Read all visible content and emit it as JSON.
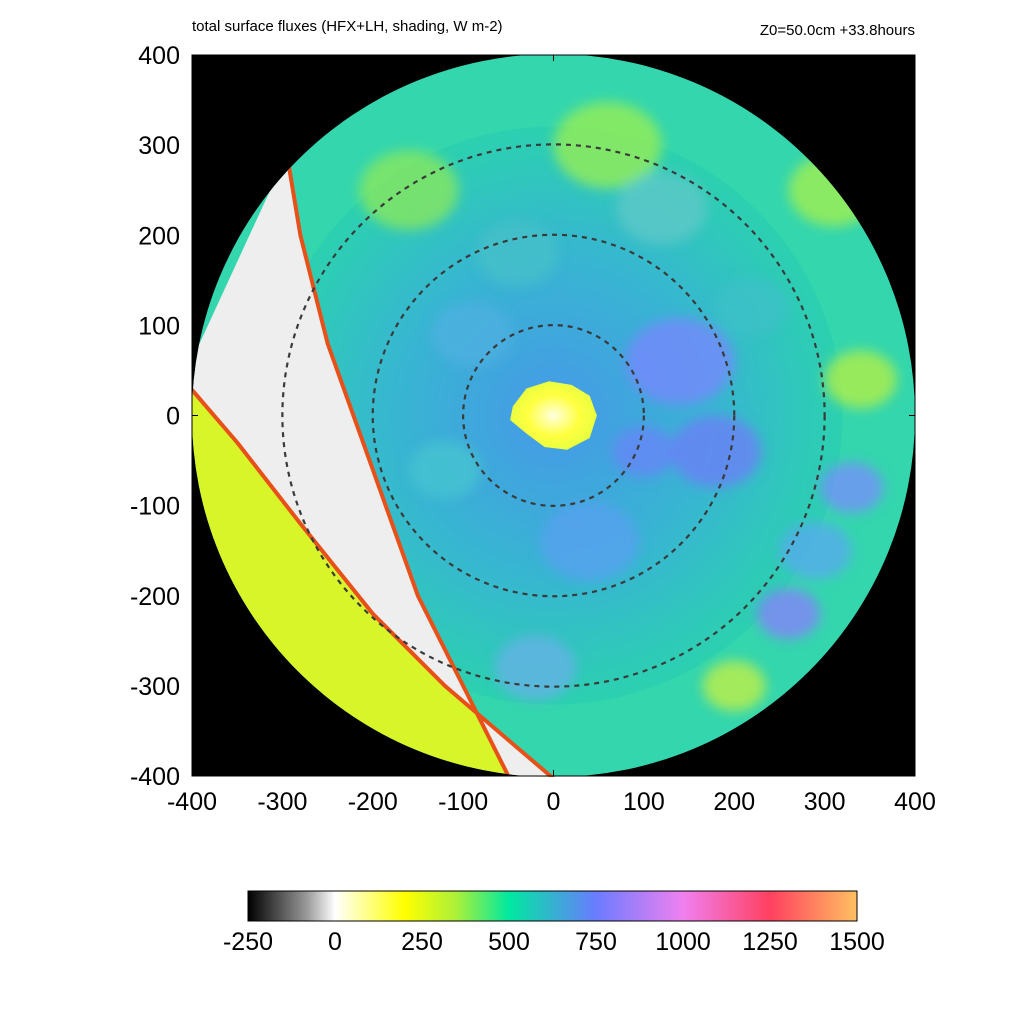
{
  "chart_data": {
    "type": "heatmap",
    "title": "total surface fluxes (HFX+LH, shading, W m-2)",
    "subtitle": "Z0=50.0cm  +33.8hours",
    "xlabel": "",
    "ylabel": "",
    "xlim": [
      -400,
      400
    ],
    "ylim": [
      -400,
      400
    ],
    "x_ticks": [
      "-400",
      "-300",
      "-200",
      "-100",
      "0",
      "100",
      "200",
      "300",
      "400"
    ],
    "y_ticks": [
      "400",
      "300",
      "200",
      "100",
      "0",
      "-100",
      "-200",
      "-300",
      "-400"
    ],
    "domain_radius": 400,
    "range_rings": [
      100,
      200,
      300
    ],
    "eye_flux_approx": 250,
    "colorbar": {
      "ticks": [
        "-250",
        "0",
        "250",
        "500",
        "750",
        "1000",
        "1250",
        "1500"
      ],
      "min": -250,
      "max": 1500,
      "stops": [
        {
          "value": -250,
          "color": "#000000"
        },
        {
          "value": -80,
          "color": "#9a9a9a"
        },
        {
          "value": 0,
          "color": "#ffffff"
        },
        {
          "value": 200,
          "color": "#ffff00"
        },
        {
          "value": 350,
          "color": "#aaf03a"
        },
        {
          "value": 500,
          "color": "#00e8a0"
        },
        {
          "value": 750,
          "color": "#6a7cff"
        },
        {
          "value": 1000,
          "color": "#f080f0"
        },
        {
          "value": 1250,
          "color": "#ff4060"
        },
        {
          "value": 1500,
          "color": "#ffc060"
        }
      ]
    }
  }
}
